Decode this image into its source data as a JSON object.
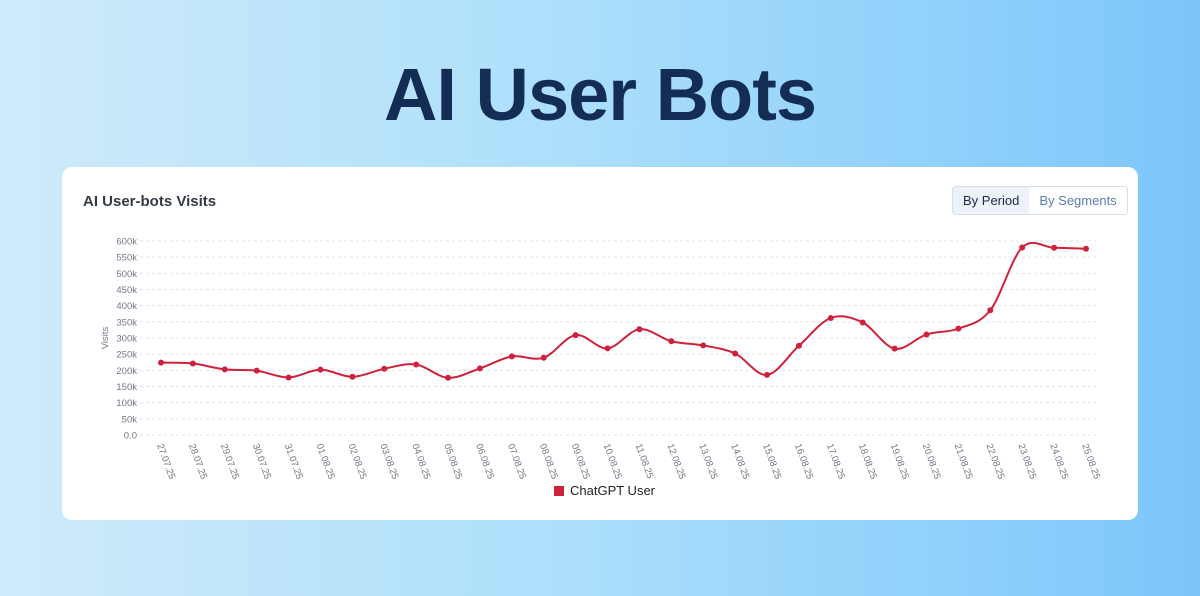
{
  "page_title": "AI User Bots",
  "card_title": "AI User-bots Visits",
  "toggle": {
    "by_period": "By Period",
    "by_segments": "By Segments"
  },
  "chart_data": {
    "type": "line",
    "title": "AI User-bots Visits",
    "xlabel": "",
    "ylabel": "Visits",
    "ylim": [
      0,
      600000
    ],
    "yticks": [
      "0.0",
      "50k",
      "100k",
      "150k",
      "200k",
      "250k",
      "300k",
      "350k",
      "400k",
      "450k",
      "500k",
      "550k",
      "600k"
    ],
    "grid": true,
    "legend_placement": "bottom",
    "categories": [
      "27.07.25",
      "28.07.25",
      "29.07.25",
      "30.07.25",
      "31.07.25",
      "01.08.25",
      "02.08.25",
      "03.08.25",
      "04.08.25",
      "05.08.25",
      "06.08.25",
      "07.08.25",
      "08.08.25",
      "09.08.25",
      "10.08.25",
      "11.08.25",
      "12.08.25",
      "13.08.25",
      "14.08.25",
      "15.08.25",
      "16.08.25",
      "17.08.25",
      "18.08.25",
      "19.08.25",
      "20.08.25",
      "21.08.25",
      "22.08.25",
      "23.08.25",
      "24.08.25",
      "25.08.25"
    ],
    "series": [
      {
        "name": "ChatGPT User",
        "color": "#d0213c",
        "values": [
          224000,
          221000,
          203000,
          199000,
          178000,
          202000,
          180000,
          205000,
          218000,
          177000,
          206000,
          243000,
          239000,
          309000,
          268000,
          327000,
          290000,
          277000,
          252000,
          186000,
          276000,
          362000,
          348000,
          267000,
          311000,
          329000,
          386000,
          580000,
          579000,
          576000
        ]
      }
    ]
  }
}
